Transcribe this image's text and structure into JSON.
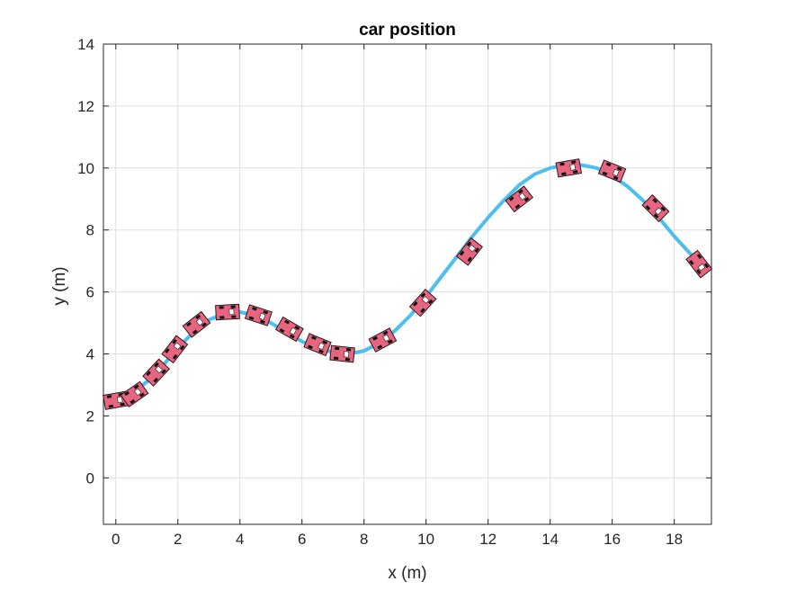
{
  "chart_data": {
    "type": "line",
    "title": "car position",
    "xlabel": "x (m)",
    "ylabel": "y (m)",
    "xlim": [
      -0.4,
      19.2
    ],
    "ylim": [
      -1.5,
      14
    ],
    "xticks": [
      0,
      2,
      4,
      6,
      8,
      10,
      12,
      14,
      16,
      18
    ],
    "yticks": [
      0,
      2,
      4,
      6,
      8,
      10,
      12,
      14
    ],
    "grid": true,
    "colors": {
      "trajectory": "#4dbeee",
      "car_body": "#e8657f",
      "car_outline": "#2b1a1e",
      "axis": "#262626",
      "grid": "#dfdfdf"
    },
    "series": [
      {
        "name": "trajectory",
        "x": [
          0,
          0.5,
          1,
          1.5,
          2,
          2.5,
          3,
          3.5,
          4,
          4.5,
          5,
          5.5,
          6,
          6.5,
          7,
          7.5,
          8,
          8.5,
          9,
          9.5,
          10,
          10.5,
          11,
          11.5,
          12,
          12.5,
          13,
          13.5,
          14,
          14.5,
          15,
          15.5,
          16,
          16.5,
          17,
          17.5,
          18,
          18.5,
          19
        ],
        "y": [
          2.4,
          2.7,
          3.1,
          3.6,
          4.2,
          4.7,
          5.1,
          5.3,
          5.35,
          5.25,
          5.0,
          4.7,
          4.4,
          4.2,
          4.05,
          4.0,
          4.1,
          4.35,
          4.75,
          5.25,
          5.85,
          6.5,
          7.15,
          7.8,
          8.4,
          8.95,
          9.45,
          9.8,
          10.0,
          10.1,
          10.1,
          10.0,
          9.75,
          9.4,
          8.95,
          8.4,
          7.8,
          7.25,
          6.8
        ]
      }
    ],
    "cars": [
      {
        "x": 0.0,
        "y": 2.5,
        "heading_deg": 10
      },
      {
        "x": 0.6,
        "y": 2.7,
        "heading_deg": 35
      },
      {
        "x": 1.3,
        "y": 3.4,
        "heading_deg": 47
      },
      {
        "x": 1.9,
        "y": 4.15,
        "heading_deg": 52
      },
      {
        "x": 2.6,
        "y": 4.95,
        "heading_deg": 38
      },
      {
        "x": 3.6,
        "y": 5.35,
        "heading_deg": 3
      },
      {
        "x": 4.6,
        "y": 5.25,
        "heading_deg": -18
      },
      {
        "x": 5.6,
        "y": 4.8,
        "heading_deg": -30
      },
      {
        "x": 6.5,
        "y": 4.3,
        "heading_deg": -22
      },
      {
        "x": 7.3,
        "y": 4.0,
        "heading_deg": -6
      },
      {
        "x": 8.6,
        "y": 4.45,
        "heading_deg": 28
      },
      {
        "x": 9.9,
        "y": 5.65,
        "heading_deg": 48
      },
      {
        "x": 11.4,
        "y": 7.3,
        "heading_deg": 52
      },
      {
        "x": 13.0,
        "y": 9.0,
        "heading_deg": 38
      },
      {
        "x": 14.6,
        "y": 10.0,
        "heading_deg": 10
      },
      {
        "x": 16.0,
        "y": 9.9,
        "heading_deg": -22
      },
      {
        "x": 17.4,
        "y": 8.7,
        "heading_deg": -45
      },
      {
        "x": 18.8,
        "y": 6.9,
        "heading_deg": -52
      }
    ]
  }
}
